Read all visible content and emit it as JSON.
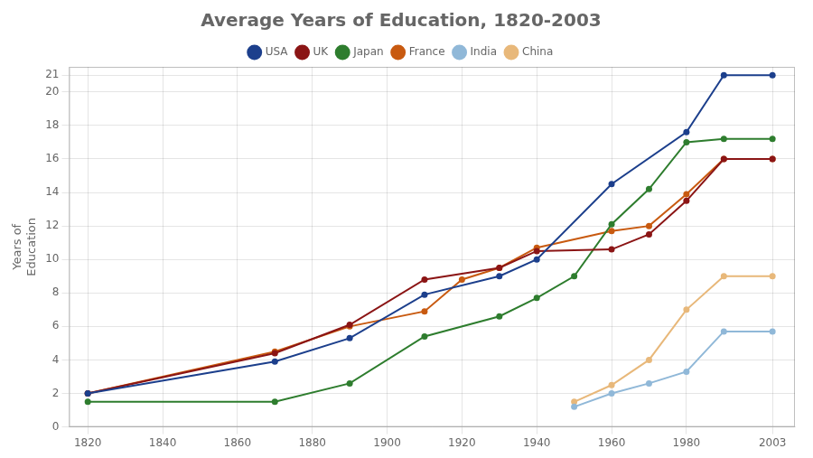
{
  "chart_data": {
    "type": "line",
    "title": "Average Years of Education, 1820-2003",
    "ylabel": "Years of\nEducation",
    "series": [
      {
        "name": "USA",
        "color": "#1c3f8c",
        "x": [
          1820,
          1870,
          1890,
          1910,
          1930,
          1940,
          1960,
          1980,
          1990,
          2003
        ],
        "values": [
          2.0,
          3.9,
          5.3,
          7.9,
          9.0,
          10.0,
          14.5,
          17.6,
          21.0,
          21.0
        ]
      },
      {
        "name": "UK",
        "color": "#8b1515",
        "x": [
          1820,
          1870,
          1890,
          1910,
          1930,
          1940,
          1960,
          1970,
          1980,
          1990,
          2003
        ],
        "values": [
          2.0,
          4.4,
          6.1,
          8.8,
          9.5,
          10.5,
          10.6,
          11.5,
          13.5,
          16.0,
          16.0
        ]
      },
      {
        "name": "Japan",
        "color": "#2e7d2e",
        "x": [
          1820,
          1870,
          1890,
          1910,
          1930,
          1940,
          1950,
          1960,
          1970,
          1980,
          1990,
          2003
        ],
        "values": [
          1.5,
          1.5,
          2.6,
          5.4,
          6.6,
          7.7,
          9.0,
          12.1,
          14.2,
          17.0,
          17.2,
          17.2
        ]
      },
      {
        "name": "France",
        "color": "#c85a10",
        "x": [
          1820,
          1870,
          1890,
          1910,
          1920,
          1930,
          1940,
          1960,
          1970,
          1980,
          1990,
          2003
        ],
        "values": [
          2.0,
          4.5,
          6.0,
          6.9,
          8.8,
          9.5,
          10.7,
          11.7,
          12.0,
          13.9,
          16.0,
          16.0
        ]
      },
      {
        "name": "India",
        "color": "#90b8d8",
        "x": [
          1950,
          1960,
          1970,
          1980,
          1990,
          2003
        ],
        "values": [
          1.2,
          2.0,
          2.6,
          3.3,
          5.7,
          5.7
        ]
      },
      {
        "name": "China",
        "color": "#e8b87a",
        "x": [
          1950,
          1960,
          1970,
          1980,
          1990,
          2003
        ],
        "values": [
          1.5,
          2.5,
          4.0,
          7.0,
          9.0,
          9.0
        ]
      }
    ],
    "xlim": [
      1815,
      2009
    ],
    "ylim": [
      0,
      21.5
    ],
    "xticks": [
      1820,
      1840,
      1860,
      1880,
      1900,
      1920,
      1940,
      1960,
      1980,
      2003
    ],
    "yticks": [
      0,
      2,
      4,
      6,
      8,
      10,
      12,
      14,
      16,
      18,
      20,
      21
    ],
    "grid": true,
    "legend": "top",
    "marker": "circle"
  }
}
